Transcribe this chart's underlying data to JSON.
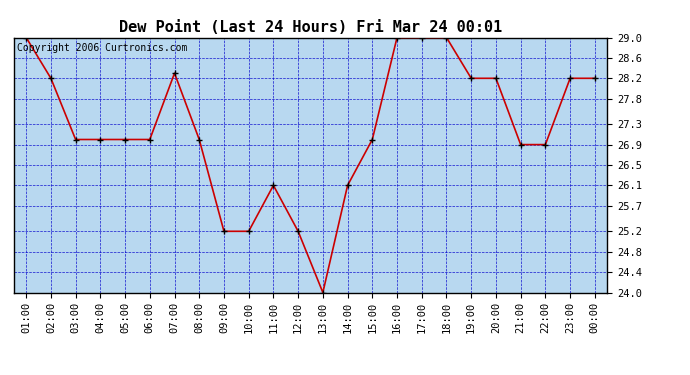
{
  "title": "Dew Point (Last 24 Hours) Fri Mar 24 00:01",
  "copyright": "Copyright 2006 Curtronics.com",
  "x_labels": [
    "01:00",
    "02:00",
    "03:00",
    "04:00",
    "05:00",
    "06:00",
    "07:00",
    "08:00",
    "09:00",
    "10:00",
    "11:00",
    "12:00",
    "13:00",
    "14:00",
    "15:00",
    "16:00",
    "17:00",
    "18:00",
    "19:00",
    "20:00",
    "21:00",
    "22:00",
    "23:00",
    "00:00"
  ],
  "y_values": [
    29.0,
    28.2,
    27.0,
    27.0,
    27.0,
    27.0,
    28.3,
    27.0,
    25.2,
    25.2,
    26.1,
    25.2,
    24.0,
    26.1,
    27.0,
    29.0,
    29.0,
    29.0,
    28.2,
    28.2,
    26.9,
    26.9,
    28.2,
    28.2
  ],
  "y_min": 24.0,
  "y_max": 29.0,
  "y_ticks": [
    24.0,
    24.4,
    24.8,
    25.2,
    25.7,
    26.1,
    26.5,
    26.9,
    27.3,
    27.8,
    28.2,
    28.6,
    29.0
  ],
  "line_color": "#cc0000",
  "marker_color": "#000000",
  "bg_color": "#b8d8f0",
  "grid_color": "#0000cc",
  "border_color": "#000000",
  "fig_bg_color": "#ffffff",
  "title_color": "#000000",
  "copyright_color": "#000000",
  "title_fontsize": 11,
  "tick_fontsize": 7.5,
  "copyright_fontsize": 7
}
